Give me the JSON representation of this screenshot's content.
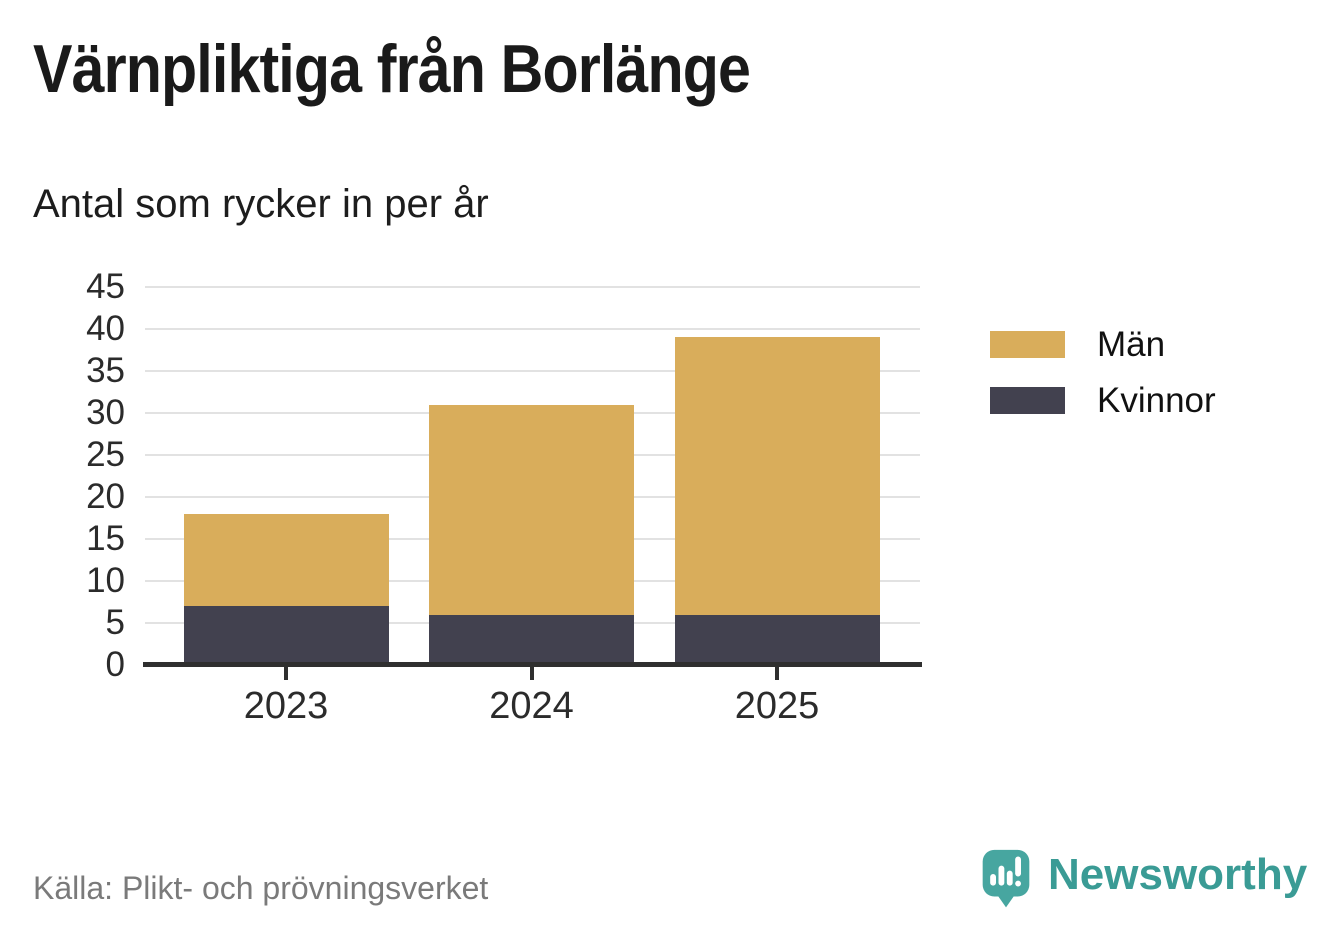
{
  "header": {
    "title": "Värnpliktiga från Borlänge",
    "subtitle": "Antal som rycker in per år"
  },
  "chart_data": {
    "type": "bar",
    "stacked": true,
    "title": "Värnpliktiga från Borlänge",
    "subtitle": "Antal som rycker in per år",
    "categories": [
      "2023",
      "2024",
      "2025"
    ],
    "series": [
      {
        "name": "Kvinnor",
        "color": "#42414F",
        "values": [
          7,
          6,
          6
        ]
      },
      {
        "name": "Män",
        "color": "#D9AD5B",
        "values": [
          11,
          25,
          33
        ]
      }
    ],
    "stack_totals": [
      18,
      31,
      39
    ],
    "xlabel": "",
    "ylabel": "",
    "ylim": [
      0,
      45
    ],
    "ytick_step": 5,
    "grid": true,
    "legend_position": "right-top"
  },
  "legend": {
    "items": [
      {
        "label": "Män",
        "color": "#D9AD5B"
      },
      {
        "label": "Kvinnor",
        "color": "#42414F"
      }
    ]
  },
  "footer": {
    "source": "Källa: Plikt- och prövningsverket",
    "brand": "Newsworthy",
    "brand_color": "#3A9B95"
  },
  "colors": {
    "men": "#D9AD5B",
    "women": "#42414F",
    "gridline": "#E2E2E2",
    "axis": "#2F2F2F",
    "text": "#1A1A1A",
    "source_text": "#7A7A7A",
    "brand_teal": "#3A9B95"
  }
}
